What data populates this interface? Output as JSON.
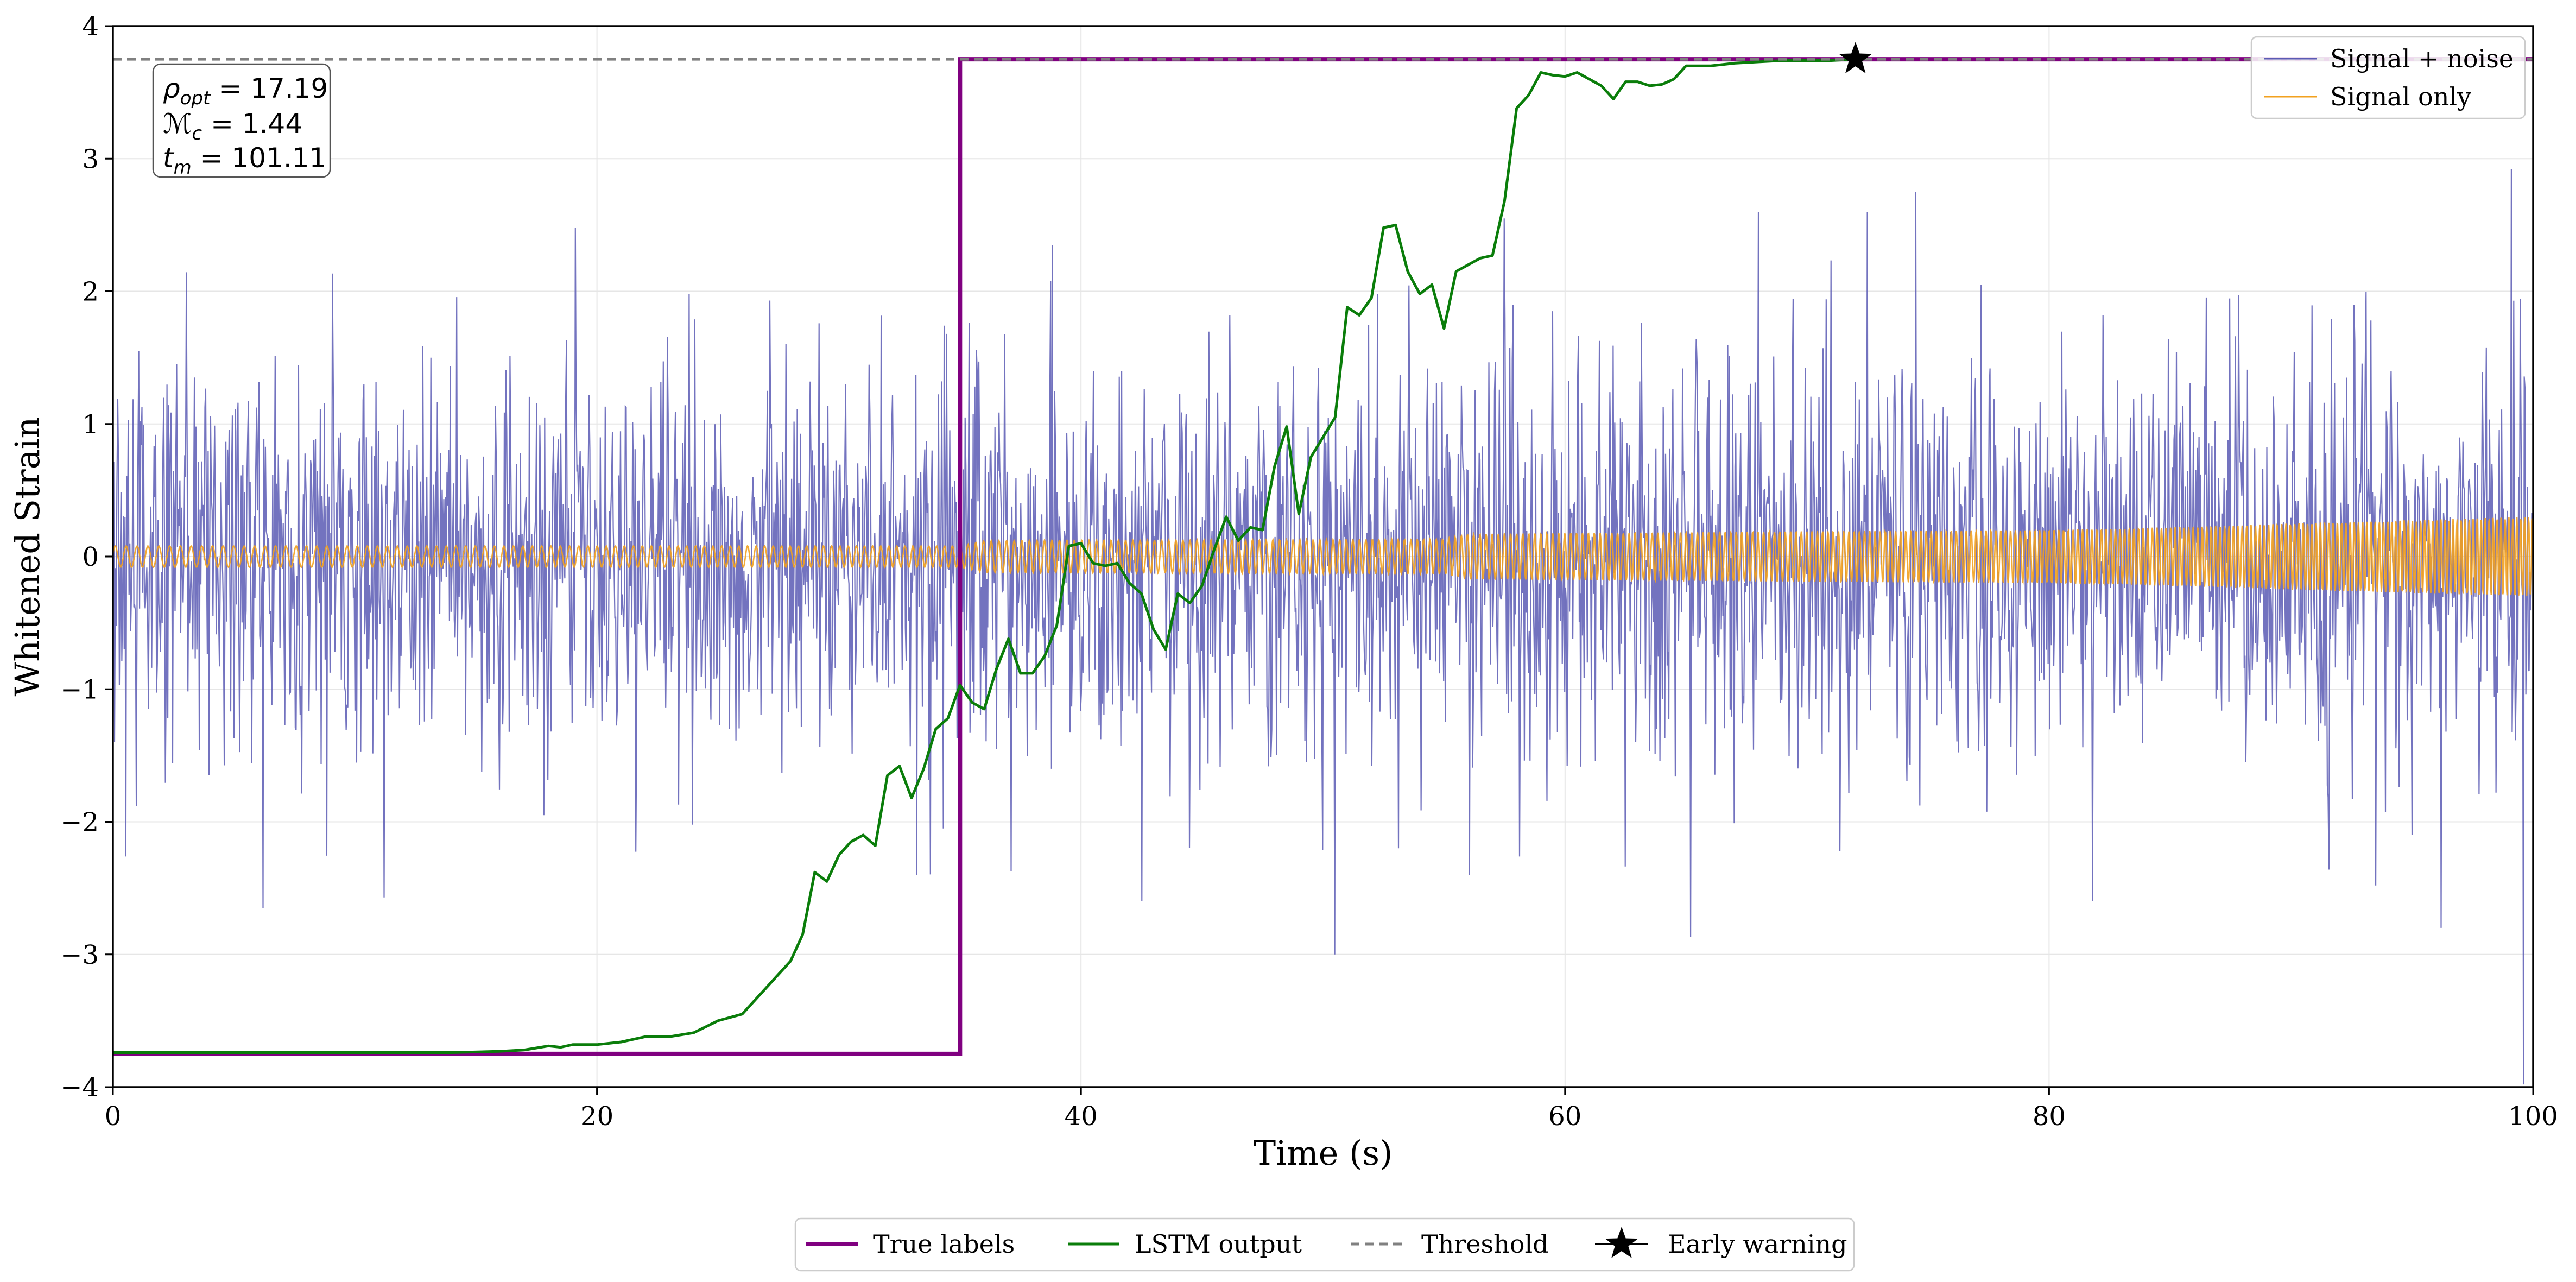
{
  "chart_data": {
    "type": "line",
    "title": "",
    "xlabel": "Time (s)",
    "ylabel": "Whitened Strain",
    "xlim": [
      0,
      100
    ],
    "ylim": [
      -4,
      4
    ],
    "x_ticks": [
      0,
      20,
      40,
      60,
      80,
      100
    ],
    "y_ticks": [
      -4,
      -3,
      -2,
      -1,
      0,
      1,
      2,
      3,
      4
    ],
    "x_tick_labels": [
      "0",
      "20",
      "40",
      "60",
      "80",
      "100"
    ],
    "y_tick_labels": [
      "−4",
      "−3",
      "−2",
      "−1",
      "0",
      "1",
      "2",
      "3",
      "4"
    ],
    "grid": true,
    "threshold": 3.75,
    "annotation": {
      "rho_label": "ρ",
      "rho_sub": "opt",
      "rho_value": " = 17.19",
      "mc_label": "ℳ",
      "mc_sub": "c",
      "mc_value": " = 1.44",
      "tm_label": "t",
      "tm_sub": "m",
      "tm_value": " = 101.11"
    },
    "noise_series": {
      "name": "Signal + noise",
      "color": "#5a5ab4",
      "samples": 3000,
      "stddev": 0.75,
      "extremes": [
        {
          "x": 6.2,
          "y": -2.65
        },
        {
          "x": 11.2,
          "y": -2.57
        },
        {
          "x": 17.8,
          "y": -1.95
        },
        {
          "x": 19.1,
          "y": 2.48
        },
        {
          "x": 34.3,
          "y": -2.05
        },
        {
          "x": 38.8,
          "y": 2.35
        },
        {
          "x": 42.5,
          "y": -2.6
        },
        {
          "x": 50.5,
          "y": -3.0
        },
        {
          "x": 57.5,
          "y": 2.55
        },
        {
          "x": 59.5,
          "y": 1.85
        },
        {
          "x": 65.2,
          "y": -2.87
        },
        {
          "x": 68.0,
          "y": 2.6
        },
        {
          "x": 72.5,
          "y": 2.6
        },
        {
          "x": 74.5,
          "y": 2.75
        },
        {
          "x": 77.2,
          "y": 2.05
        },
        {
          "x": 81.8,
          "y": -2.6
        },
        {
          "x": 93.5,
          "y": -2.48
        },
        {
          "x": 96.2,
          "y": -2.8
        },
        {
          "x": 99.1,
          "y": 2.92
        },
        {
          "x": 99.6,
          "y": -3.98
        }
      ]
    },
    "signal_series": {
      "name": "Signal only",
      "color": "#f2a11f",
      "envelope": [
        {
          "x": 0,
          "amp": 0.08
        },
        {
          "x": 35,
          "amp": 0.08
        },
        {
          "x": 36,
          "amp": 0.12
        },
        {
          "x": 55,
          "amp": 0.13
        },
        {
          "x": 56,
          "amp": 0.17
        },
        {
          "x": 70,
          "amp": 0.19
        },
        {
          "x": 80,
          "amp": 0.2
        },
        {
          "x": 87,
          "amp": 0.23
        },
        {
          "x": 90,
          "amp": 0.25
        },
        {
          "x": 100,
          "amp": 0.3
        }
      ]
    },
    "true_labels": {
      "name": "True labels",
      "color": "#800080",
      "x": [
        0,
        35,
        35,
        100
      ],
      "y": [
        -3.75,
        -3.75,
        3.75,
        3.75
      ]
    },
    "lstm_output": {
      "name": "LSTM output",
      "color": "#0a7d0a",
      "x": [
        0,
        14,
        16,
        17,
        18,
        18.5,
        19,
        20,
        21,
        22,
        23,
        24,
        25,
        26,
        27,
        28,
        28.5,
        29,
        29.5,
        30,
        30.5,
        31,
        31.5,
        32,
        32.5,
        33,
        33.5,
        34,
        34.5,
        35,
        35.5,
        36,
        36.5,
        37,
        37.5,
        38,
        38.5,
        39,
        39.5,
        40,
        40.5,
        41,
        41.5,
        42,
        42.5,
        43,
        43.5,
        44,
        44.5,
        45,
        45.5,
        46,
        46.5,
        47,
        47.5,
        48,
        48.5,
        49,
        49.5,
        50,
        50.5,
        51,
        51.5,
        52,
        52.5,
        53,
        53.5,
        54,
        54.5,
        55,
        55.5,
        56,
        56.5,
        57,
        57.5,
        58,
        58.5,
        59,
        59.5,
        60,
        60.5,
        61,
        61.5,
        62,
        62.5,
        63,
        63.5,
        64,
        64.5,
        65,
        66,
        67,
        68,
        69,
        70,
        71,
        72
      ],
      "y": [
        -3.74,
        -3.74,
        -3.73,
        -3.72,
        -3.69,
        -3.7,
        -3.68,
        -3.68,
        -3.66,
        -3.62,
        -3.62,
        -3.59,
        -3.5,
        -3.45,
        -3.25,
        -3.05,
        -2.85,
        -2.38,
        -2.45,
        -2.25,
        -2.15,
        -2.1,
        -2.18,
        -1.65,
        -1.58,
        -1.82,
        -1.6,
        -1.3,
        -1.22,
        -0.97,
        -1.1,
        -1.15,
        -0.85,
        -0.62,
        -0.88,
        -0.88,
        -0.75,
        -0.52,
        0.08,
        0.1,
        -0.05,
        -0.07,
        -0.05,
        -0.2,
        -0.28,
        -0.55,
        -0.7,
        -0.28,
        -0.35,
        -0.22,
        0.05,
        0.3,
        0.12,
        0.22,
        0.2,
        0.68,
        0.98,
        0.32,
        0.75,
        0.9,
        1.05,
        1.88,
        1.82,
        1.95,
        2.48,
        2.5,
        2.15,
        1.98,
        2.05,
        1.72,
        2.15,
        2.2,
        2.25,
        2.27,
        2.68,
        3.38,
        3.48,
        3.65,
        3.63,
        3.62,
        3.65,
        3.6,
        3.55,
        3.45,
        3.58,
        3.58,
        3.55,
        3.56,
        3.6,
        3.7,
        3.7,
        3.72,
        3.73,
        3.74,
        3.74,
        3.74,
        3.75
      ]
    },
    "early_warning": {
      "name": "Early warning",
      "x": 72,
      "y": 3.75
    },
    "legend_top_right": [
      "Signal + noise",
      "Signal only"
    ],
    "legend_bottom": [
      "True labels",
      "LSTM output",
      "Threshold",
      "Early warning"
    ]
  }
}
